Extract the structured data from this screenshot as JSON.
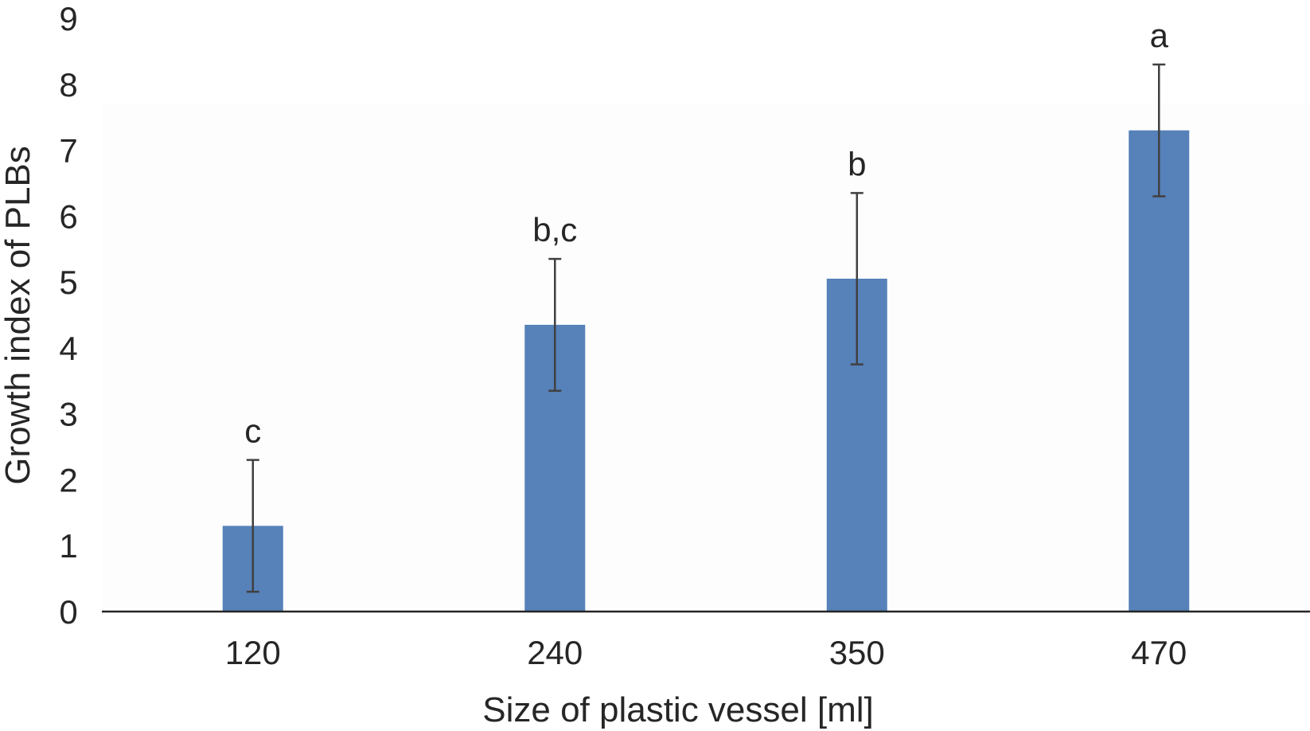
{
  "chart_data": {
    "type": "bar",
    "title": "",
    "xlabel": "Size of plastic vessel [ml]",
    "ylabel": "Growth index of PLBs",
    "categories": [
      "120",
      "240",
      "350",
      "470"
    ],
    "series": [
      {
        "values": [
          1.3,
          4.35,
          5.05,
          7.3
        ],
        "errors": [
          1.0,
          1.0,
          1.3,
          1.0
        ],
        "labels": [
          "c",
          "b,c",
          "b",
          "a"
        ]
      }
    ],
    "ylim": [
      0,
      9
    ],
    "yticks": [
      "0",
      "1",
      "2",
      "3",
      "4",
      "5",
      "6",
      "7",
      "8",
      "9"
    ],
    "grid": false,
    "legend": "none",
    "colors": {
      "bar": "#5681b9",
      "errorbar": "#404040",
      "axis": "#262626",
      "plotarea": "#fdfdfe"
    }
  }
}
